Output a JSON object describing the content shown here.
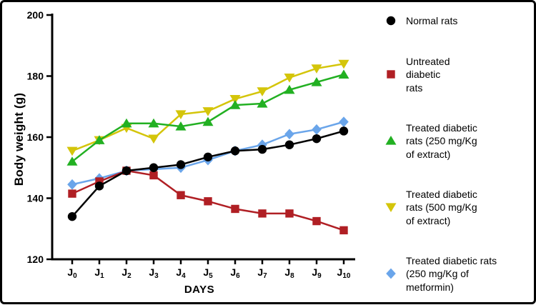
{
  "chart_data": {
    "type": "line",
    "title": "",
    "xlabel": "DAYS",
    "ylabel": "Body weight (g)",
    "ylim": [
      120,
      200
    ],
    "yticks": [
      120,
      140,
      160,
      180,
      200
    ],
    "x_label_base": "J",
    "x_label_subscripts": [
      "0",
      "1",
      "2",
      "3",
      "4",
      "5",
      "6",
      "7",
      "8",
      "9",
      "10"
    ],
    "x_labels": [
      "J0",
      "J1",
      "J2",
      "J3",
      "J4",
      "J5",
      "J6",
      "J7",
      "J8",
      "J9",
      "J10"
    ],
    "grid": false,
    "legend_position": "right",
    "series": [
      {
        "name": "Normal rats",
        "legend_lines": [
          "Normal rats"
        ],
        "marker": "circle",
        "color": "#000000",
        "values": [
          134,
          144,
          149,
          150,
          151,
          153.5,
          155.5,
          156,
          157.5,
          159.5,
          162
        ]
      },
      {
        "name": "Untreated diabetic rats",
        "legend_lines": [
          "Untreated",
          "diabetic",
          "rats"
        ],
        "marker": "square",
        "color": "#b01f24",
        "values": [
          141.5,
          145.5,
          149,
          147.5,
          141,
          139,
          136.5,
          135,
          135,
          132.5,
          129.5
        ]
      },
      {
        "name": "Treated diabetic rats (250 mg/Kg of extract)",
        "legend_lines": [
          "Treated diabetic",
          "rats (250 mg/Kg",
          "of extract)"
        ],
        "marker": "triangle-up",
        "color": "#22b022",
        "values": [
          152,
          159,
          164.5,
          164.5,
          163.5,
          165,
          170.5,
          171,
          175.5,
          178,
          180.5
        ]
      },
      {
        "name": "Treated diabetic rats (500 mg/Kg of extract)",
        "legend_lines": [
          "Treated diabetic",
          "rats (500 mg/Kg",
          "of extract)"
        ],
        "marker": "triangle-down",
        "color": "#d4c50a",
        "values": [
          155.5,
          159,
          163,
          159.5,
          167.5,
          168.5,
          172.5,
          175,
          179.5,
          182.5,
          184
        ]
      },
      {
        "name": "Treated diabetic rats (250 mg/Kg of metformin)",
        "legend_lines": [
          "Treated diabetic rats",
          "(250 mg/Kg of",
          "metformin)"
        ],
        "marker": "diamond",
        "color": "#6aa5ea",
        "values": [
          144.5,
          146.5,
          149,
          149.5,
          150,
          152.5,
          155.5,
          157.5,
          161,
          162.5,
          165
        ]
      }
    ]
  }
}
